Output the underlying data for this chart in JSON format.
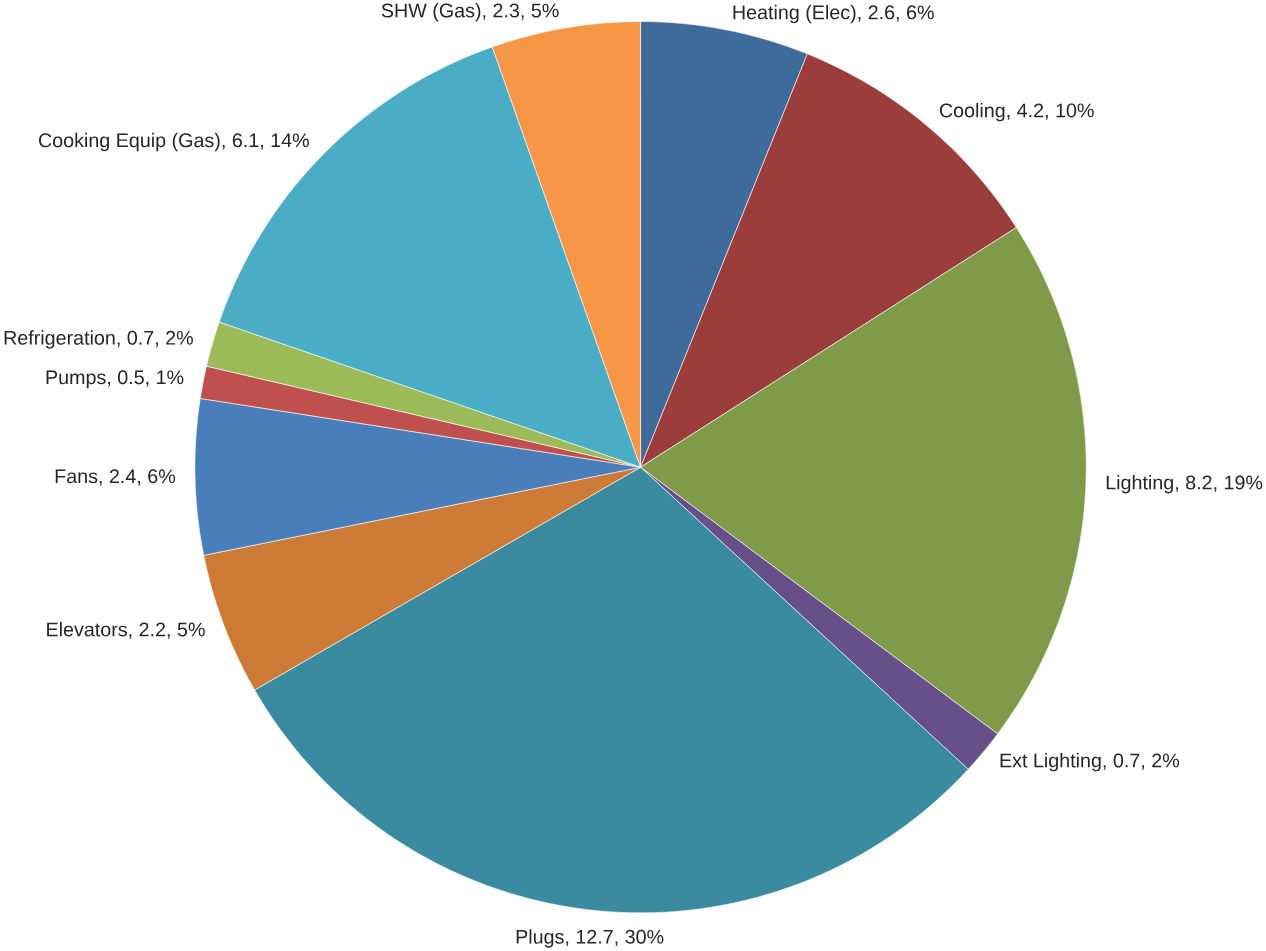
{
  "chart_data": {
    "type": "pie",
    "categories": [
      "Heating (Elec)",
      "Cooling",
      "Lighting",
      "Ext Lighting",
      "Plugs",
      "Elevators",
      "Fans",
      "Pumps",
      "Refrigeration",
      "Cooking Equip (Gas)",
      "SHW (Gas)"
    ],
    "values": [
      2.6,
      4.2,
      8.2,
      0.7,
      12.7,
      2.2,
      2.4,
      0.5,
      0.7,
      6.1,
      2.3
    ],
    "value_labels": [
      ", 2.6, 6%",
      ", 4.2, 10%",
      ", 8.2, 19%",
      ", 0.7, 2%",
      ", 12.7, 30%",
      ", 2.2, 5%",
      ", 2.4, 6%",
      ", 0.5, 1%",
      ", 0.7, 2%",
      ", 6.1, 14%",
      ", 2.3, 5%"
    ],
    "colors": [
      "#3f6b9a",
      "#9b3e3b",
      "#7f9a48",
      "#67508a",
      "#3b8ba0",
      "#cc7a36",
      "#4a7ebb",
      "#c0504d",
      "#9bbb59",
      "#4bacc6",
      "#f79646"
    ]
  }
}
